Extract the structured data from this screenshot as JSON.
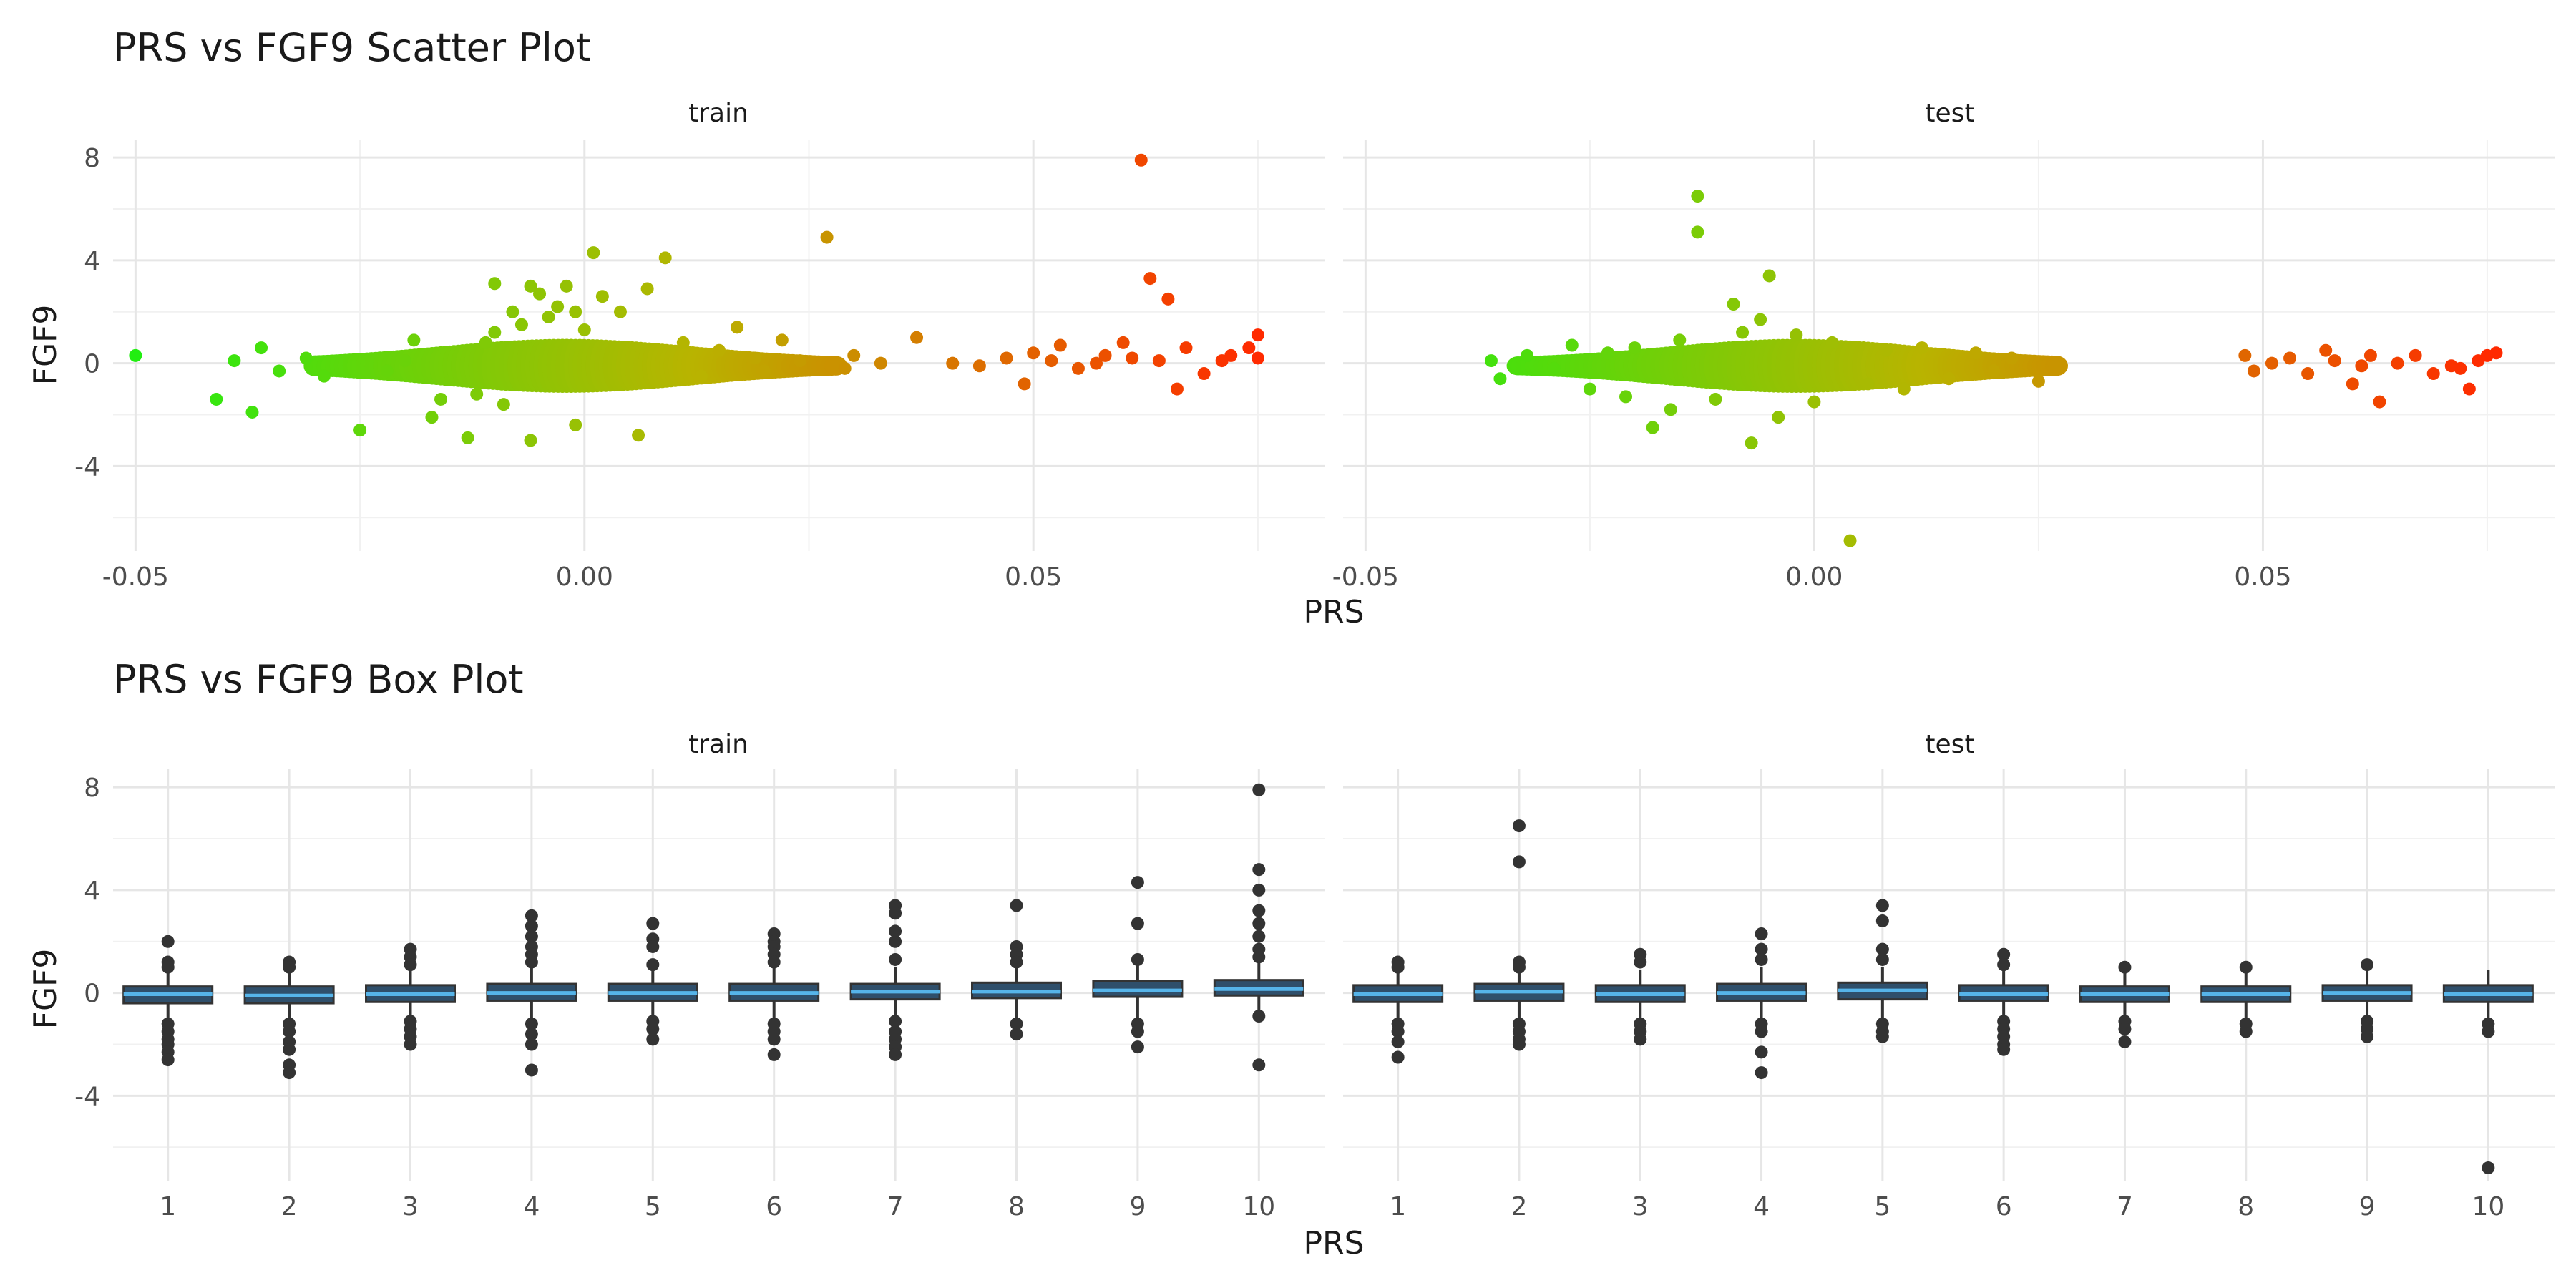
{
  "figure": {
    "colors": {
      "low": "#22ee11",
      "mid": "#b8b400",
      "high": "#ff2a00",
      "box_fill": "#2f4f6b",
      "box_median": "#56b4e9",
      "outlier": "#333333"
    }
  },
  "scatter": {
    "title": "PRS vs FGF9 Scatter Plot",
    "xlabel": "PRS",
    "ylabel": "FGF9",
    "panels": [
      "train",
      "test"
    ],
    "x_ticks": [
      "-0.05",
      "0.00",
      "0.05"
    ],
    "y_ticks": [
      "-4",
      "0",
      "4",
      "8"
    ]
  },
  "box": {
    "title": "PRS vs FGF9 Box Plot",
    "xlabel": "PRS",
    "ylabel": "FGF9",
    "panels": [
      "train",
      "test"
    ],
    "x_ticks": [
      "1",
      "2",
      "3",
      "4",
      "5",
      "6",
      "7",
      "8",
      "9",
      "10"
    ],
    "y_ticks": [
      "-4",
      "0",
      "4",
      "8"
    ]
  },
  "chart_data": [
    {
      "type": "scatter",
      "title": "PRS vs FGF9 Scatter Plot",
      "xlabel": "PRS",
      "ylabel": "FGF9",
      "xlim": [
        -0.0525,
        0.0825
      ],
      "ylim": [
        -7.3,
        8.7
      ],
      "x_ticks": [
        -0.05,
        0.0,
        0.05
      ],
      "y_ticks": [
        -4,
        0,
        4,
        8
      ],
      "grid": true,
      "color_scale": "PRS (green low → red high)",
      "panels": [
        {
          "name": "train",
          "points": [
            [
              -0.05,
              0.3
            ],
            [
              -0.041,
              -1.4
            ],
            [
              -0.037,
              -1.9
            ],
            [
              -0.039,
              0.1
            ],
            [
              -0.036,
              0.6
            ],
            [
              -0.034,
              -0.3
            ],
            [
              -0.031,
              0.2
            ],
            [
              -0.029,
              -0.5
            ],
            [
              -0.025,
              -2.6
            ],
            [
              -0.022,
              -0.3
            ],
            [
              -0.02,
              0.1
            ],
            [
              -0.019,
              0.9
            ],
            [
              -0.017,
              -2.1
            ],
            [
              -0.016,
              -1.4
            ],
            [
              -0.013,
              -2.9
            ],
            [
              -0.012,
              -1.2
            ],
            [
              -0.011,
              0.8
            ],
            [
              -0.01,
              1.2
            ],
            [
              -0.009,
              -1.6
            ],
            [
              -0.008,
              2.0
            ],
            [
              -0.007,
              1.5
            ],
            [
              -0.006,
              3.0
            ],
            [
              -0.005,
              2.7
            ],
            [
              -0.004,
              1.8
            ],
            [
              -0.003,
              2.2
            ],
            [
              -0.002,
              3.0
            ],
            [
              -0.001,
              2.0
            ],
            [
              0.0,
              1.3
            ],
            [
              0.001,
              4.3
            ],
            [
              -0.01,
              3.1
            ],
            [
              -0.006,
              -3.0
            ],
            [
              -0.001,
              -2.4
            ],
            [
              0.002,
              2.6
            ],
            [
              0.004,
              2.0
            ],
            [
              0.006,
              -2.8
            ],
            [
              0.007,
              2.9
            ],
            [
              0.009,
              4.1
            ],
            [
              0.011,
              0.8
            ],
            [
              0.013,
              -0.5
            ],
            [
              0.015,
              0.5
            ],
            [
              0.017,
              1.4
            ],
            [
              0.019,
              0.2
            ],
            [
              0.02,
              -0.3
            ],
            [
              0.022,
              0.9
            ],
            [
              0.024,
              0.1
            ],
            [
              0.027,
              4.9
            ],
            [
              0.029,
              -0.2
            ],
            [
              0.03,
              0.3
            ],
            [
              0.033,
              0.0
            ],
            [
              0.037,
              1.0
            ],
            [
              0.041,
              0.0
            ],
            [
              0.044,
              -0.1
            ],
            [
              0.047,
              0.2
            ],
            [
              0.049,
              -0.8
            ],
            [
              0.05,
              0.4
            ],
            [
              0.052,
              0.1
            ],
            [
              0.053,
              0.7
            ],
            [
              0.055,
              -0.2
            ],
            [
              0.057,
              0.0
            ],
            [
              0.058,
              0.3
            ],
            [
              0.06,
              0.8
            ],
            [
              0.061,
              0.2
            ],
            [
              0.062,
              7.9
            ],
            [
              0.063,
              3.3
            ],
            [
              0.064,
              0.1
            ],
            [
              0.065,
              2.5
            ],
            [
              0.066,
              -1.0
            ],
            [
              0.067,
              0.6
            ],
            [
              0.069,
              -0.4
            ],
            [
              0.071,
              0.1
            ],
            [
              0.072,
              0.3
            ],
            [
              0.074,
              0.6
            ],
            [
              0.075,
              1.1
            ],
            [
              0.075,
              0.2
            ]
          ]
        },
        {
          "name": "test",
          "points": [
            [
              -0.036,
              0.1
            ],
            [
              -0.035,
              -0.6
            ],
            [
              -0.032,
              0.3
            ],
            [
              -0.029,
              -0.2
            ],
            [
              -0.027,
              0.7
            ],
            [
              -0.025,
              -1.0
            ],
            [
              -0.023,
              0.4
            ],
            [
              -0.021,
              -1.3
            ],
            [
              -0.02,
              0.6
            ],
            [
              -0.018,
              -2.5
            ],
            [
              -0.016,
              -1.8
            ],
            [
              -0.015,
              0.9
            ],
            [
              -0.013,
              6.5
            ],
            [
              -0.013,
              5.1
            ],
            [
              -0.011,
              -1.4
            ],
            [
              -0.009,
              2.3
            ],
            [
              -0.008,
              1.2
            ],
            [
              -0.007,
              -3.1
            ],
            [
              -0.006,
              1.7
            ],
            [
              -0.005,
              3.4
            ],
            [
              -0.004,
              -2.1
            ],
            [
              -0.002,
              1.1
            ],
            [
              0.0,
              -1.5
            ],
            [
              0.002,
              0.8
            ],
            [
              0.004,
              -6.9
            ],
            [
              0.006,
              -0.8
            ],
            [
              0.008,
              0.5
            ],
            [
              0.01,
              -1.0
            ],
            [
              0.012,
              0.6
            ],
            [
              0.015,
              -0.6
            ],
            [
              0.018,
              0.4
            ],
            [
              0.02,
              -0.3
            ],
            [
              0.022,
              0.2
            ],
            [
              0.025,
              -0.7
            ],
            [
              0.027,
              -0.1
            ],
            [
              0.048,
              0.3
            ],
            [
              0.049,
              -0.3
            ],
            [
              0.051,
              0.0
            ],
            [
              0.053,
              0.2
            ],
            [
              0.055,
              -0.4
            ],
            [
              0.057,
              0.5
            ],
            [
              0.058,
              0.1
            ],
            [
              0.06,
              -0.8
            ],
            [
              0.061,
              -0.1
            ],
            [
              0.062,
              0.3
            ],
            [
              0.063,
              -1.5
            ],
            [
              0.065,
              0.0
            ],
            [
              0.067,
              0.3
            ],
            [
              0.069,
              -0.4
            ],
            [
              0.071,
              -0.1
            ],
            [
              0.072,
              -0.2
            ],
            [
              0.073,
              -1.0
            ],
            [
              0.074,
              0.1
            ],
            [
              0.075,
              0.3
            ],
            [
              0.076,
              0.4
            ]
          ]
        }
      ]
    },
    {
      "type": "box",
      "title": "PRS vs FGF9 Box Plot",
      "xlabel": "PRS",
      "ylabel": "FGF9",
      "categories": [
        "1",
        "2",
        "3",
        "4",
        "5",
        "6",
        "7",
        "8",
        "9",
        "10"
      ],
      "ylim": [
        -7.3,
        8.7
      ],
      "y_ticks": [
        -4,
        0,
        4,
        8
      ],
      "grid": true,
      "panels": [
        {
          "name": "train",
          "boxes": [
            {
              "q1": -0.4,
              "median": -0.05,
              "q3": 0.25,
              "wlo": -1.0,
              "whi": 0.9,
              "outliers": [
                2.0,
                1.2,
                1.0,
                -1.2,
                -1.5,
                -1.8,
                -2.0,
                -2.3,
                -2.6
              ]
            },
            {
              "q1": -0.4,
              "median": -0.1,
              "q3": 0.25,
              "wlo": -1.0,
              "whi": 0.9,
              "outliers": [
                1.2,
                1.0,
                -1.2,
                -1.5,
                -1.9,
                -2.2,
                -2.8,
                -3.1
              ]
            },
            {
              "q1": -0.35,
              "median": -0.05,
              "q3": 0.3,
              "wlo": -1.0,
              "whi": 0.9,
              "outliers": [
                1.7,
                1.4,
                1.1,
                -1.1,
                -1.4,
                -1.7,
                -2.0
              ]
            },
            {
              "q1": -0.3,
              "median": 0.0,
              "q3": 0.35,
              "wlo": -1.0,
              "whi": 1.0,
              "outliers": [
                3.0,
                2.6,
                2.2,
                1.8,
                1.5,
                1.2,
                -1.2,
                -1.6,
                -2.0,
                -3.0
              ]
            },
            {
              "q1": -0.3,
              "median": 0.0,
              "q3": 0.35,
              "wlo": -1.0,
              "whi": 1.0,
              "outliers": [
                2.7,
                2.1,
                1.8,
                1.1,
                -1.1,
                -1.4,
                -1.8
              ]
            },
            {
              "q1": -0.3,
              "median": 0.0,
              "q3": 0.35,
              "wlo": -1.0,
              "whi": 1.0,
              "outliers": [
                2.3,
                2.0,
                1.8,
                1.5,
                1.2,
                -1.2,
                -1.5,
                -1.8,
                -2.4
              ]
            },
            {
              "q1": -0.25,
              "median": 0.05,
              "q3": 0.35,
              "wlo": -1.0,
              "whi": 1.0,
              "outliers": [
                3.4,
                3.1,
                2.4,
                2.0,
                1.3,
                -1.1,
                -1.5,
                -1.8,
                -2.1,
                -2.4
              ]
            },
            {
              "q1": -0.2,
              "median": 0.05,
              "q3": 0.4,
              "wlo": -1.0,
              "whi": 1.0,
              "outliers": [
                3.4,
                1.8,
                1.5,
                1.2,
                -1.2,
                -1.6
              ]
            },
            {
              "q1": -0.15,
              "median": 0.1,
              "q3": 0.45,
              "wlo": -1.0,
              "whi": 1.1,
              "outliers": [
                4.3,
                2.7,
                1.3,
                -1.2,
                -1.5,
                -2.1
              ]
            },
            {
              "q1": -0.1,
              "median": 0.15,
              "q3": 0.5,
              "wlo": -0.9,
              "whi": 1.2,
              "outliers": [
                7.9,
                4.8,
                4.0,
                3.2,
                2.7,
                2.2,
                1.7,
                1.4,
                -0.9,
                -2.8
              ]
            }
          ]
        },
        {
          "name": "test",
          "boxes": [
            {
              "q1": -0.35,
              "median": -0.05,
              "q3": 0.3,
              "wlo": -1.0,
              "whi": 0.9,
              "outliers": [
                1.2,
                1.0,
                -1.2,
                -1.5,
                -1.9,
                -2.5
              ]
            },
            {
              "q1": -0.3,
              "median": 0.05,
              "q3": 0.35,
              "wlo": -1.0,
              "whi": 0.9,
              "outliers": [
                6.5,
                5.1,
                1.2,
                1.0,
                -1.2,
                -1.5,
                -1.8,
                -2.0
              ]
            },
            {
              "q1": -0.35,
              "median": -0.05,
              "q3": 0.3,
              "wlo": -1.0,
              "whi": 0.9,
              "outliers": [
                1.5,
                1.2,
                -1.2,
                -1.5,
                -1.8
              ]
            },
            {
              "q1": -0.3,
              "median": 0.0,
              "q3": 0.35,
              "wlo": -1.0,
              "whi": 1.0,
              "outliers": [
                2.3,
                1.7,
                1.3,
                -1.2,
                -1.5,
                -2.3,
                -3.1
              ]
            },
            {
              "q1": -0.25,
              "median": 0.1,
              "q3": 0.4,
              "wlo": -1.0,
              "whi": 1.0,
              "outliers": [
                3.4,
                2.8,
                1.7,
                1.3,
                -1.2,
                -1.5,
                -1.7
              ]
            },
            {
              "q1": -0.3,
              "median": -0.05,
              "q3": 0.3,
              "wlo": -1.0,
              "whi": 0.9,
              "outliers": [
                1.5,
                1.1,
                -1.1,
                -1.4,
                -1.7,
                -2.0,
                -2.2
              ]
            },
            {
              "q1": -0.35,
              "median": -0.05,
              "q3": 0.25,
              "wlo": -1.0,
              "whi": 0.8,
              "outliers": [
                1.0,
                -1.1,
                -1.4,
                -1.9
              ]
            },
            {
              "q1": -0.35,
              "median": -0.05,
              "q3": 0.25,
              "wlo": -1.0,
              "whi": 0.8,
              "outliers": [
                1.0,
                -1.2,
                -1.5
              ]
            },
            {
              "q1": -0.3,
              "median": 0.0,
              "q3": 0.3,
              "wlo": -1.0,
              "whi": 0.9,
              "outliers": [
                1.1,
                -1.1,
                -1.4,
                -1.7
              ]
            },
            {
              "q1": -0.35,
              "median": -0.05,
              "q3": 0.3,
              "wlo": -1.0,
              "whi": 0.9,
              "outliers": [
                -1.2,
                -1.5,
                -6.8
              ]
            }
          ]
        }
      ]
    }
  ]
}
